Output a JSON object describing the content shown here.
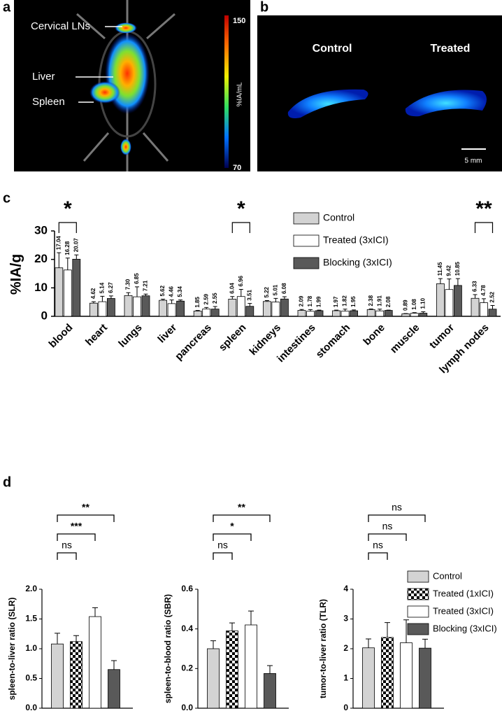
{
  "panels": {
    "a": {
      "label": "a",
      "annotations": [
        "Cervical LNs",
        "Liver",
        "Spleen"
      ],
      "colorbar": {
        "title": "%IA/mL",
        "max": 150,
        "min": 70
      }
    },
    "b": {
      "label": "b",
      "groups": [
        "Control",
        "Treated"
      ],
      "scale_bar": "5 mm"
    },
    "c": {
      "label": "c"
    },
    "d": {
      "label": "d"
    }
  },
  "chart_data": [
    {
      "type": "grouped-bar",
      "ylabel": "%IA/g",
      "categories": [
        "blood",
        "heart",
        "lungs",
        "liver",
        "pancreas",
        "spleen",
        "kidneys",
        "intestines",
        "stomach",
        "bone",
        "muscle",
        "tumor",
        "lymph nodes"
      ],
      "series": [
        {
          "name": "Control",
          "color": "#d3d3d3",
          "values": [
            17.04,
            4.62,
            7.3,
            5.62,
            1.85,
            6.04,
            5.22,
            2.09,
            1.97,
            2.38,
            0.89,
            11.45,
            6.33
          ],
          "errors": [
            5.3,
            0.5,
            1.0,
            0.4,
            0.2,
            0.9,
            0.3,
            0.3,
            0.2,
            0.2,
            0.1,
            1.8,
            1.3
          ],
          "value_labels": [
            "17.04",
            "4.62",
            "7.30",
            "5.62",
            "1.85",
            "6.04",
            "5.22",
            "2.09",
            "1.97",
            "2.38",
            "0.89",
            "11.45",
            "6.33"
          ]
        },
        {
          "name": "Treated (3xICI)",
          "color": "#ffffff",
          "values": [
            16.28,
            5.14,
            6.85,
            4.46,
            2.59,
            6.96,
            5.01,
            1.78,
            1.82,
            1.91,
            1.08,
            9.42,
            4.78
          ],
          "errors": [
            4.2,
            1.9,
            3.5,
            1.3,
            0.5,
            2.5,
            1.3,
            0.6,
            0.7,
            0.6,
            0.2,
            3.7,
            1.4
          ],
          "value_labels": [
            "16.28",
            "5.14",
            "6.85",
            "4.46",
            "2.59",
            "6.96",
            "5.01",
            "1.78",
            "1.82",
            "1.91",
            "1.08",
            "9.42",
            "4.78"
          ]
        },
        {
          "name": "Blocking (3xICI)",
          "color": "#595959",
          "values": [
            20.07,
            6.27,
            7.21,
            5.34,
            2.55,
            3.51,
            6.08,
            1.99,
            1.95,
            2.08,
            1.1,
            10.85,
            2.52
          ],
          "errors": [
            1.5,
            0.9,
            0.6,
            0.4,
            0.9,
            1.0,
            0.8,
            0.2,
            0.3,
            0.1,
            0.5,
            2.4,
            1.3
          ],
          "value_labels": [
            "20.07",
            "6.27",
            "7.21",
            "5.34",
            "2.55",
            "3.51",
            "6.08",
            "1.99",
            "1.95",
            "2.08",
            "1.10",
            "10.85",
            "2.52"
          ]
        }
      ],
      "ylim": [
        0,
        30
      ],
      "yticks": [
        0,
        10,
        20,
        30
      ],
      "legend": "top-right",
      "significance": [
        {
          "label": "*",
          "category": "blood"
        },
        {
          "label": "*",
          "category": "spleen"
        },
        {
          "label": "**",
          "category": "lymph nodes"
        }
      ]
    },
    {
      "type": "bar-panels",
      "legend_entries": [
        {
          "name": "Control",
          "color": "#d3d3d3"
        },
        {
          "name": "Treated (1xICI)",
          "color": "#000000",
          "pattern": "checkerboard"
        },
        {
          "name": "Treated (3xICI)",
          "color": "#ffffff"
        },
        {
          "name": "Blocking (3xICI)",
          "color": "#595959"
        }
      ],
      "subplots": [
        {
          "ylabel": "spleen-to-liver ratio (SLR)",
          "values": [
            1.08,
            1.12,
            1.54,
            0.65
          ],
          "errors": [
            0.18,
            0.1,
            0.15,
            0.15
          ],
          "ylim": [
            0,
            2
          ],
          "yticks": [
            {
              "value": 0,
              "label": "0.0"
            },
            {
              "value": 0.5,
              "label": "0.5"
            },
            {
              "value": 1,
              "label": "1.0"
            },
            {
              "value": 1.5,
              "label": "1.5"
            },
            {
              "value": 2,
              "label": "2.0"
            }
          ],
          "comparisons": [
            {
              "label": "ns",
              "pair": [
                "Control",
                "Treated (1xICI)"
              ]
            },
            {
              "label": "***",
              "pair": [
                "Control",
                "Treated (3xICI)"
              ]
            },
            {
              "label": "**",
              "pair": [
                "Control",
                "Blocking (3xICI)"
              ]
            }
          ]
        },
        {
          "ylabel": "spleen-to-blood ratio (SBR)",
          "values": [
            0.3,
            0.39,
            0.42,
            0.175
          ],
          "errors": [
            0.04,
            0.04,
            0.07,
            0.04
          ],
          "ylim": [
            0,
            0.6
          ],
          "yticks": [
            {
              "value": 0,
              "label": "0.0"
            },
            0.2,
            0.4,
            0.6
          ],
          "comparisons": [
            {
              "label": "ns",
              "pair": [
                "Control",
                "Treated (1xICI)"
              ]
            },
            {
              "label": "*",
              "pair": [
                "Control",
                "Treated (3xICI)"
              ]
            },
            {
              "label": "**",
              "pair": [
                "Control",
                "Blocking (3xICI)"
              ]
            }
          ]
        },
        {
          "ylabel": "tumor-to-liver ratio (TLR)",
          "values": [
            2.03,
            2.38,
            2.2,
            2.02
          ],
          "errors": [
            0.3,
            0.5,
            0.77,
            0.3
          ],
          "ylim": [
            0,
            4
          ],
          "yticks": [
            0,
            1,
            2,
            3,
            4
          ],
          "comparisons": [
            {
              "label": "ns",
              "pair": [
                "Control",
                "Treated (1xICI)"
              ]
            },
            {
              "label": "ns",
              "pair": [
                "Control",
                "Treated (3xICI)"
              ]
            },
            {
              "label": "ns",
              "pair": [
                "Control",
                "Blocking (3xICI)"
              ]
            }
          ]
        }
      ]
    }
  ]
}
